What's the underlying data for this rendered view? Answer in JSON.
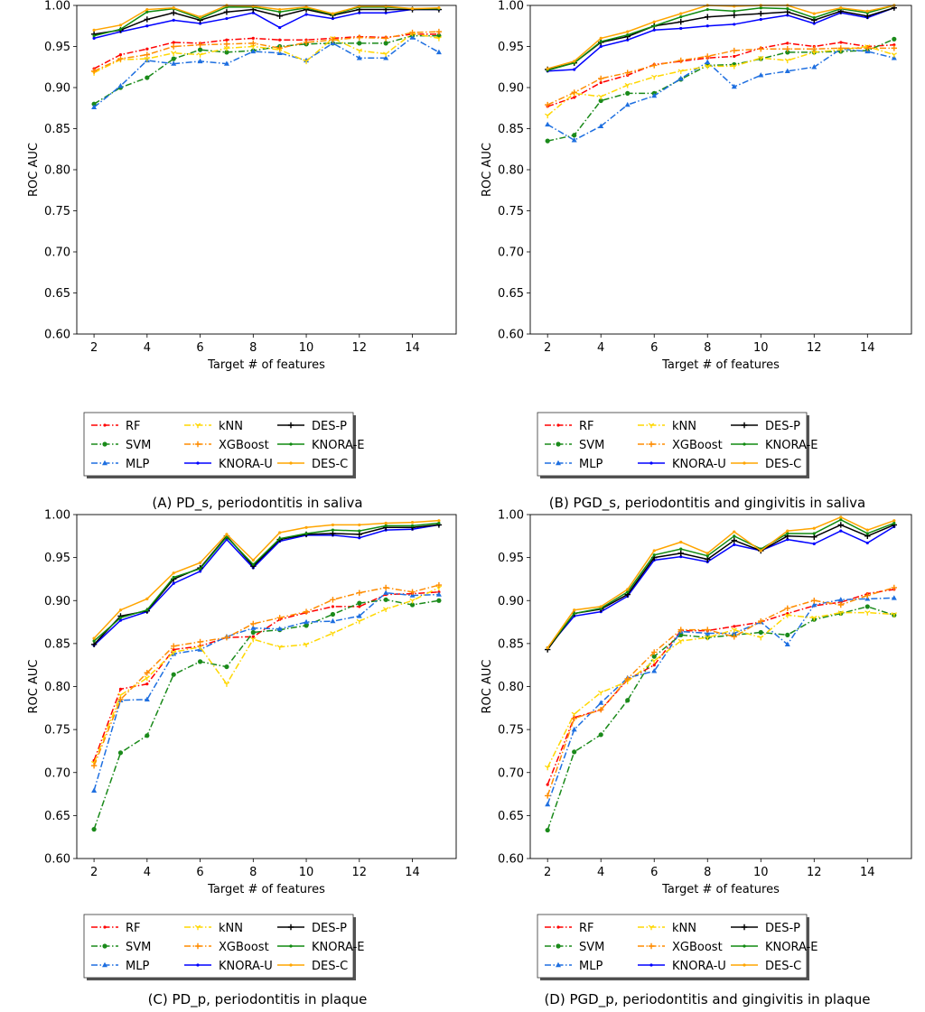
{
  "chart_data": [
    {
      "type": "line",
      "caption": "(A) PD_s, periodontitis in saliva",
      "xlabel": "Target # of features",
      "ylabel": "ROC AUC",
      "ylim": [
        0.6,
        1.0
      ],
      "xlim": [
        1.35,
        15.65
      ],
      "xticks": [
        2,
        4,
        6,
        8,
        10,
        12,
        14
      ],
      "yticks": [
        "0.60",
        "0.65",
        "0.70",
        "0.75",
        "0.80",
        "0.85",
        "0.90",
        "0.95",
        "1.00"
      ],
      "legend_placement": "below",
      "x": [
        2,
        3,
        4,
        5,
        6,
        7,
        8,
        9,
        10,
        11,
        12,
        13,
        14,
        15
      ],
      "series": [
        {
          "name": "RF",
          "values": [
            0.923,
            0.94,
            0.947,
            0.955,
            0.954,
            0.958,
            0.96,
            0.958,
            0.958,
            0.96,
            0.962,
            0.961,
            0.965,
            0.965
          ]
        },
        {
          "name": "SVM",
          "values": [
            0.88,
            0.9,
            0.912,
            0.935,
            0.946,
            0.943,
            0.945,
            0.95,
            0.953,
            0.954,
            0.954,
            0.954,
            0.963,
            0.963
          ]
        },
        {
          "name": "MLP",
          "values": [
            0.876,
            0.902,
            0.933,
            0.929,
            0.932,
            0.929,
            0.944,
            0.942,
            0.933,
            0.954,
            0.936,
            0.936,
            0.961,
            0.943
          ]
        },
        {
          "name": "kNN",
          "values": [
            0.918,
            0.934,
            0.935,
            0.942,
            0.94,
            0.948,
            0.95,
            0.946,
            0.932,
            0.96,
            0.945,
            0.941,
            0.966,
            0.96
          ]
        },
        {
          "name": "XGBoost",
          "values": [
            0.92,
            0.935,
            0.94,
            0.95,
            0.952,
            0.953,
            0.954,
            0.948,
            0.955,
            0.958,
            0.961,
            0.96,
            0.967,
            0.968
          ]
        },
        {
          "name": "KNORA-U",
          "values": [
            0.96,
            0.968,
            0.975,
            0.982,
            0.978,
            0.984,
            0.991,
            0.973,
            0.989,
            0.984,
            0.991,
            0.991,
            0.995,
            0.995
          ]
        },
        {
          "name": "DES-P",
          "values": [
            0.965,
            0.97,
            0.983,
            0.991,
            0.982,
            0.992,
            0.995,
            0.987,
            0.995,
            0.988,
            0.995,
            0.995,
            0.995,
            0.995
          ]
        },
        {
          "name": "KNORA-E",
          "values": [
            0.963,
            0.971,
            0.992,
            0.996,
            0.984,
            0.998,
            0.998,
            0.992,
            0.997,
            0.989,
            0.998,
            0.998,
            0.996,
            0.996
          ]
        },
        {
          "name": "DES-C",
          "values": [
            0.97,
            0.976,
            0.995,
            0.997,
            0.986,
            1.0,
            0.999,
            0.995,
            0.998,
            0.99,
            0.999,
            0.999,
            0.996,
            0.997
          ]
        }
      ]
    },
    {
      "type": "line",
      "caption": "(B) PGD_s, periodontitis and gingivitis in saliva",
      "xlabel": "Target # of features",
      "ylabel": "ROC AUC",
      "ylim": [
        0.6,
        1.0
      ],
      "xlim": [
        1.35,
        15.65
      ],
      "xticks": [
        2,
        4,
        6,
        8,
        10,
        12,
        14
      ],
      "yticks": [
        "0.60",
        "0.65",
        "0.70",
        "0.75",
        "0.80",
        "0.85",
        "0.90",
        "0.95",
        "1.00"
      ],
      "legend_placement": "below",
      "x": [
        2,
        3,
        4,
        5,
        6,
        7,
        8,
        9,
        10,
        11,
        12,
        13,
        14,
        15
      ],
      "series": [
        {
          "name": "RF",
          "values": [
            0.877,
            0.888,
            0.906,
            0.915,
            0.928,
            0.932,
            0.936,
            0.938,
            0.948,
            0.954,
            0.95,
            0.955,
            0.95,
            0.952
          ]
        },
        {
          "name": "SVM",
          "values": [
            0.835,
            0.842,
            0.884,
            0.893,
            0.893,
            0.91,
            0.927,
            0.928,
            0.935,
            0.943,
            0.943,
            0.944,
            0.945,
            0.959
          ]
        },
        {
          "name": "MLP",
          "values": [
            0.855,
            0.836,
            0.853,
            0.879,
            0.89,
            0.911,
            0.931,
            0.901,
            0.915,
            0.92,
            0.925,
            0.947,
            0.944,
            0.936
          ]
        },
        {
          "name": "kNN",
          "values": [
            0.866,
            0.893,
            0.889,
            0.903,
            0.913,
            0.92,
            0.926,
            0.926,
            0.936,
            0.933,
            0.943,
            0.946,
            0.95,
            0.94
          ]
        },
        {
          "name": "XGBoost",
          "values": [
            0.879,
            0.894,
            0.911,
            0.918,
            0.927,
            0.933,
            0.938,
            0.945,
            0.947,
            0.947,
            0.947,
            0.948,
            0.948,
            0.948
          ]
        },
        {
          "name": "KNORA-U",
          "values": [
            0.92,
            0.922,
            0.95,
            0.958,
            0.97,
            0.972,
            0.975,
            0.977,
            0.983,
            0.988,
            0.978,
            0.991,
            0.985,
            0.997
          ]
        },
        {
          "name": "DES-P",
          "values": [
            0.922,
            0.93,
            0.955,
            0.962,
            0.975,
            0.98,
            0.986,
            0.988,
            0.99,
            0.992,
            0.982,
            0.993,
            0.987,
            0.997
          ]
        },
        {
          "name": "KNORA-E",
          "values": [
            0.921,
            0.93,
            0.956,
            0.964,
            0.975,
            0.986,
            0.995,
            0.993,
            0.997,
            0.996,
            0.985,
            0.996,
            0.991,
            1.0
          ]
        },
        {
          "name": "DES-C",
          "values": [
            0.923,
            0.932,
            0.96,
            0.968,
            0.98,
            0.99,
            1.0,
            0.999,
            1.0,
            1.0,
            0.99,
            0.997,
            0.993,
            1.0
          ]
        }
      ]
    },
    {
      "type": "line",
      "caption": "(C) PD_p, periodontitis in plaque",
      "xlabel": "Target # of features",
      "ylabel": "ROC AUC",
      "ylim": [
        0.6,
        1.0
      ],
      "xlim": [
        1.35,
        15.65
      ],
      "xticks": [
        2,
        4,
        6,
        8,
        10,
        12,
        14
      ],
      "yticks": [
        "0.60",
        "0.65",
        "0.70",
        "0.75",
        "0.80",
        "0.85",
        "0.90",
        "0.95",
        "1.00"
      ],
      "legend_placement": "below",
      "x": [
        2,
        3,
        4,
        5,
        6,
        7,
        8,
        9,
        10,
        11,
        12,
        13,
        14,
        15
      ],
      "series": [
        {
          "name": "RF",
          "values": [
            0.714,
            0.797,
            0.803,
            0.843,
            0.847,
            0.857,
            0.858,
            0.878,
            0.886,
            0.893,
            0.893,
            0.907,
            0.908,
            0.91
          ]
        },
        {
          "name": "SVM",
          "values": [
            0.634,
            0.723,
            0.743,
            0.814,
            0.829,
            0.823,
            0.863,
            0.866,
            0.871,
            0.884,
            0.897,
            0.901,
            0.895,
            0.9
          ]
        },
        {
          "name": "MLP",
          "values": [
            0.679,
            0.784,
            0.785,
            0.838,
            0.843,
            0.858,
            0.868,
            0.867,
            0.875,
            0.876,
            0.882,
            0.909,
            0.906,
            0.907
          ]
        },
        {
          "name": "kNN",
          "values": [
            0.711,
            0.79,
            0.81,
            0.84,
            0.846,
            0.803,
            0.855,
            0.846,
            0.849,
            0.862,
            0.876,
            0.89,
            0.9,
            0.915
          ]
        },
        {
          "name": "XGBoost",
          "values": [
            0.708,
            0.785,
            0.816,
            0.847,
            0.852,
            0.857,
            0.873,
            0.88,
            0.887,
            0.901,
            0.909,
            0.915,
            0.91,
            0.918
          ]
        },
        {
          "name": "KNORA-U",
          "values": [
            0.848,
            0.877,
            0.887,
            0.92,
            0.934,
            0.971,
            0.938,
            0.969,
            0.976,
            0.976,
            0.973,
            0.982,
            0.983,
            0.988
          ]
        },
        {
          "name": "DES-P",
          "values": [
            0.849,
            0.882,
            0.888,
            0.925,
            0.938,
            0.975,
            0.94,
            0.971,
            0.977,
            0.978,
            0.977,
            0.985,
            0.985,
            0.988
          ]
        },
        {
          "name": "KNORA-E",
          "values": [
            0.853,
            0.88,
            0.889,
            0.927,
            0.937,
            0.974,
            0.942,
            0.972,
            0.978,
            0.982,
            0.981,
            0.987,
            0.987,
            0.99
          ]
        },
        {
          "name": "DES-C",
          "values": [
            0.856,
            0.889,
            0.902,
            0.932,
            0.944,
            0.977,
            0.947,
            0.979,
            0.985,
            0.988,
            0.988,
            0.99,
            0.991,
            0.993
          ]
        }
      ]
    },
    {
      "type": "line",
      "caption": "(D) PGD_p, periodontitis and gingivitis in plaque",
      "xlabel": "Target # of features",
      "ylabel": "ROC AUC",
      "ylim": [
        0.6,
        1.0
      ],
      "xlim": [
        1.35,
        15.65
      ],
      "xticks": [
        2,
        4,
        6,
        8,
        10,
        12,
        14
      ],
      "yticks": [
        "0.60",
        "0.65",
        "0.70",
        "0.75",
        "0.80",
        "0.85",
        "0.90",
        "0.95",
        "1.00"
      ],
      "legend_placement": "below",
      "x": [
        2,
        3,
        4,
        5,
        6,
        7,
        8,
        9,
        10,
        11,
        12,
        13,
        14,
        15
      ],
      "series": [
        {
          "name": "RF",
          "values": [
            0.686,
            0.764,
            0.773,
            0.808,
            0.825,
            0.865,
            0.865,
            0.87,
            0.875,
            0.885,
            0.894,
            0.898,
            0.908,
            0.913
          ]
        },
        {
          "name": "SVM",
          "values": [
            0.633,
            0.724,
            0.744,
            0.784,
            0.835,
            0.86,
            0.857,
            0.86,
            0.863,
            0.86,
            0.878,
            0.885,
            0.893,
            0.883
          ]
        },
        {
          "name": "MLP",
          "values": [
            0.663,
            0.75,
            0.781,
            0.81,
            0.818,
            0.864,
            0.862,
            0.862,
            0.875,
            0.849,
            0.895,
            0.901,
            0.902,
            0.903
          ]
        },
        {
          "name": "kNN",
          "values": [
            0.706,
            0.768,
            0.793,
            0.806,
            0.83,
            0.853,
            0.857,
            0.866,
            0.857,
            0.883,
            0.88,
            0.886,
            0.886,
            0.884
          ]
        },
        {
          "name": "XGBoost",
          "values": [
            0.673,
            0.763,
            0.773,
            0.809,
            0.84,
            0.866,
            0.866,
            0.858,
            0.876,
            0.891,
            0.9,
            0.895,
            0.906,
            0.915
          ]
        },
        {
          "name": "KNORA-U",
          "values": [
            0.845,
            0.882,
            0.887,
            0.905,
            0.947,
            0.951,
            0.945,
            0.965,
            0.958,
            0.971,
            0.966,
            0.981,
            0.967,
            0.986
          ]
        },
        {
          "name": "DES-P",
          "values": [
            0.843,
            0.885,
            0.89,
            0.907,
            0.95,
            0.955,
            0.948,
            0.97,
            0.958,
            0.975,
            0.974,
            0.988,
            0.975,
            0.988
          ]
        },
        {
          "name": "KNORA-E",
          "values": [
            0.845,
            0.885,
            0.891,
            0.91,
            0.953,
            0.96,
            0.952,
            0.975,
            0.96,
            0.978,
            0.978,
            0.994,
            0.978,
            0.99
          ]
        },
        {
          "name": "DES-C",
          "values": [
            0.845,
            0.889,
            0.893,
            0.913,
            0.958,
            0.968,
            0.955,
            0.98,
            0.958,
            0.981,
            0.984,
            0.997,
            0.982,
            0.993
          ]
        }
      ]
    }
  ],
  "series_styles": [
    {
      "name": "RF",
      "color": "#ff0000",
      "dash": "dashdot",
      "marker": "dot"
    },
    {
      "name": "SVM",
      "color": "#1a8a1a",
      "dash": "dashdot",
      "marker": "circle"
    },
    {
      "name": "MLP",
      "color": "#1e6fe0",
      "dash": "dashdot",
      "marker": "triangle"
    },
    {
      "name": "kNN",
      "color": "#ffd700",
      "dash": "dashdot",
      "marker": "tri"
    },
    {
      "name": "XGBoost",
      "color": "#ff8c00",
      "dash": "dashdot",
      "marker": "plus"
    },
    {
      "name": "KNORA-U",
      "color": "#0000ff",
      "dash": "solid",
      "marker": "dot"
    },
    {
      "name": "DES-P",
      "color": "#000000",
      "dash": "solid",
      "marker": "plus"
    },
    {
      "name": "KNORA-E",
      "color": "#108a10",
      "dash": "solid",
      "marker": "dot"
    },
    {
      "name": "DES-C",
      "color": "#ffa500",
      "dash": "solid",
      "marker": "dot"
    }
  ]
}
